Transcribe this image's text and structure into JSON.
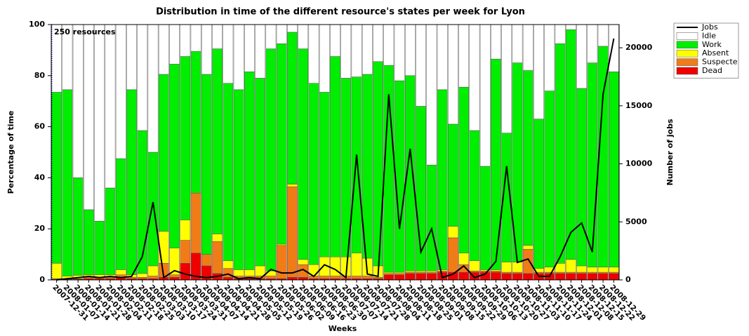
{
  "chart_data": {
    "type": "bar",
    "stacked": true,
    "title": "Distribution in time of the different resource's states per week for Lyon",
    "x_label": "Weeks",
    "y_label": "Percentage of time",
    "y2_label": "Number of jobs",
    "annotation": "250 resources",
    "annotation_color": "#0000cc",
    "categories": [
      "2007-12-31",
      "2008-01-07",
      "2008-01-14",
      "2008-01-21",
      "2008-01-28",
      "2008-02-04",
      "2008-02-11",
      "2008-02-18",
      "2008-02-25",
      "2008-03-03",
      "2008-03-10",
      "2008-03-17",
      "2008-03-24",
      "2008-03-31",
      "2008-04-07",
      "2008-04-14",
      "2008-04-21",
      "2008-04-28",
      "2008-05-05",
      "2008-05-12",
      "2008-05-19",
      "2008-05-26",
      "2008-06-02",
      "2008-06-09",
      "2008-06-16",
      "2008-06-23",
      "2008-06-30",
      "2008-07-07",
      "2008-07-14",
      "2008-07-21",
      "2008-07-28",
      "2008-08-04",
      "2008-08-11",
      "2008-08-18",
      "2008-08-25",
      "2008-09-01",
      "2008-09-08",
      "2008-09-15",
      "2008-09-22",
      "2008-09-29",
      "2008-10-06",
      "2008-10-13",
      "2008-10-20",
      "2008-10-27",
      "2008-11-03",
      "2008-11-10",
      "2008-11-17",
      "2008-11-24",
      "2008-12-01",
      "2008-12-08",
      "2008-12-15",
      "2008-12-22",
      "2008-12-29"
    ],
    "series": [
      {
        "name": "Dead",
        "color": "#ee0000",
        "values": [
          0.3,
          0.3,
          0.3,
          0.5,
          0.5,
          0.5,
          1,
          0.5,
          0.5,
          0.5,
          1,
          1,
          6.5,
          10.5,
          5.5,
          2.5,
          1,
          0.5,
          0.5,
          0.5,
          0.5,
          0.5,
          1,
          1,
          0.5,
          0.5,
          0.5,
          0.5,
          0.5,
          0.5,
          0.5,
          2,
          2,
          2.5,
          2.5,
          2.5,
          3,
          3,
          3,
          3,
          3,
          3,
          2.5,
          2.5,
          2.5,
          2.5,
          2.5,
          2.5,
          2.5,
          2.5,
          2.5,
          2.5,
          2.5
        ]
      },
      {
        "name": "Suspecte",
        "color": "#f07c18",
        "values": [
          0.2,
          0.2,
          0.2,
          0.5,
          0.5,
          0.5,
          1,
          0.5,
          0.5,
          1,
          5.5,
          1,
          9,
          23.5,
          4.5,
          12.5,
          3.5,
          1,
          1,
          1,
          1,
          13,
          35.5,
          5,
          1,
          1,
          1,
          1,
          1,
          1,
          0.5,
          0.5,
          0.5,
          0.5,
          0.5,
          0.5,
          0.5,
          13.5,
          3,
          0.5,
          0.5,
          0.5,
          0.5,
          0.5,
          9.5,
          0.5,
          0.5,
          0.5,
          0.5,
          0.5,
          0.5,
          0.5,
          0.5
        ]
      },
      {
        "name": "Absent",
        "color": "#ffff00",
        "values": [
          6,
          1,
          1.3,
          1,
          1,
          1,
          2,
          1,
          1.5,
          4,
          12.5,
          10.5,
          8,
          0,
          0,
          3,
          3,
          2.5,
          2.5,
          4,
          2,
          0.5,
          1,
          2,
          4.5,
          7.5,
          7.5,
          7.5,
          9,
          7,
          4.5,
          0.5,
          0.5,
          0.5,
          0.5,
          0.5,
          0.5,
          4.5,
          4.5,
          4,
          0.5,
          0.5,
          4,
          4,
          1.5,
          1.5,
          2,
          3.5,
          5,
          2.5,
          2,
          2,
          2
        ]
      },
      {
        "name": "Work",
        "color": "#00ee00",
        "values": [
          67,
          73,
          38.2,
          25.5,
          21,
          34,
          43.5,
          72.5,
          56,
          44.5,
          61.5,
          72,
          64,
          55.5,
          70.5,
          72.5,
          69.5,
          70.5,
          77.5,
          73.5,
          87,
          78.5,
          59.5,
          82.5,
          71,
          64.5,
          78.5,
          70,
          69,
          72,
          80,
          81,
          75,
          76.5,
          64.5,
          41.5,
          70.5,
          40,
          65,
          51,
          40.5,
          82.5,
          50.5,
          78,
          68.5,
          58.5,
          69,
          86,
          90,
          69.5,
          80,
          86.5,
          76.5
        ]
      },
      {
        "name": "Idle",
        "color": "#ffffff",
        "values": [
          26.5,
          25.5,
          60,
          72.5,
          77,
          64,
          52.5,
          25.5,
          41.5,
          50,
          19.5,
          15.5,
          12.5,
          10.5,
          19.5,
          9.5,
          23,
          25.5,
          18.5,
          21,
          9.5,
          7.5,
          3,
          9.5,
          23,
          26.5,
          12.5,
          21,
          20.5,
          19.5,
          14.5,
          16,
          22,
          20,
          32,
          55,
          25.5,
          39,
          24.5,
          41.5,
          55.5,
          13.5,
          42.5,
          15,
          18,
          37,
          26,
          7.5,
          2,
          25,
          15,
          8.5,
          18.5
        ]
      },
      {
        "name": "Jobs",
        "color": "#000000",
        "type": "line",
        "axis": "y2",
        "values": [
          0,
          100,
          200,
          300,
          200,
          300,
          200,
          300,
          2000,
          6700,
          200,
          800,
          500,
          300,
          200,
          300,
          500,
          100,
          200,
          100,
          900,
          600,
          600,
          900,
          300,
          1300,
          900,
          200,
          10800,
          500,
          300,
          16000,
          4400,
          11300,
          2400,
          4400,
          200,
          500,
          1200,
          200,
          500,
          1600,
          9800,
          1500,
          1800,
          300,
          300,
          2000,
          4100,
          4900,
          2400,
          16000,
          20800
        ]
      }
    ],
    "ylim": [
      0,
      100
    ],
    "yticks": [
      0,
      20,
      40,
      60,
      80,
      100
    ],
    "y2lim": [
      0,
      22000
    ],
    "y2ticks": [
      0,
      5000,
      10000,
      15000,
      20000
    ],
    "grid": false,
    "legend": "outside-top-right"
  }
}
